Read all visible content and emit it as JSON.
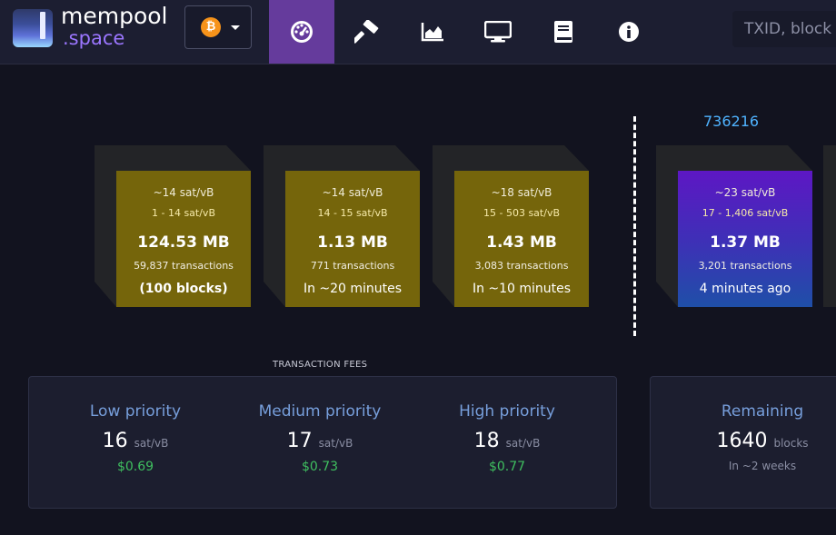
{
  "header": {
    "brand_line1": "mempool",
    "brand_line2": ".space",
    "coin_symbol": "₿",
    "nav": [
      {
        "name": "dashboard-icon"
      },
      {
        "name": "hammer-icon"
      },
      {
        "name": "chart-icon"
      },
      {
        "name": "tv-icon"
      },
      {
        "name": "book-icon"
      },
      {
        "name": "info-icon"
      }
    ],
    "search_placeholder": "TXID, block"
  },
  "mempool_blocks": [
    {
      "fee": "~14 sat/vB",
      "range": "1 - 14 sat/vB",
      "size": "124.53 MB",
      "tx": "59,837 transactions",
      "time": "(100 blocks)"
    },
    {
      "fee": "~14 sat/vB",
      "range": "14 - 15 sat/vB",
      "size": "1.13 MB",
      "tx": "771 transactions",
      "time": "In ~20 minutes"
    },
    {
      "fee": "~18 sat/vB",
      "range": "15 - 503 sat/vB",
      "size": "1.43 MB",
      "tx": "3,083 transactions",
      "time": "In ~10 minutes"
    }
  ],
  "mined_block": {
    "height": "736216",
    "fee": "~23 sat/vB",
    "range": "17 - 1,406 sat/vB",
    "size": "1.37 MB",
    "tx": "3,201 transactions",
    "time": "4 minutes ago"
  },
  "fees": {
    "title": "TRANSACTION FEES",
    "items": [
      {
        "label": "Low priority",
        "value": "16",
        "unit": "sat/vB",
        "usd": "$0.69"
      },
      {
        "label": "Medium priority",
        "value": "17",
        "unit": "sat/vB",
        "usd": "$0.73"
      },
      {
        "label": "High priority",
        "value": "18",
        "unit": "sat/vB",
        "usd": "$0.77"
      }
    ]
  },
  "difficulty": {
    "label": "Remaining",
    "value": "1640",
    "unit": "blocks",
    "sub": "In ~2 weeks"
  },
  "colors": {
    "accent": "#653b9c",
    "pending_block": "#75650b",
    "fee_label": "#779fdc",
    "usd": "#3fbf5f",
    "block_height": "#4fb3ff"
  }
}
